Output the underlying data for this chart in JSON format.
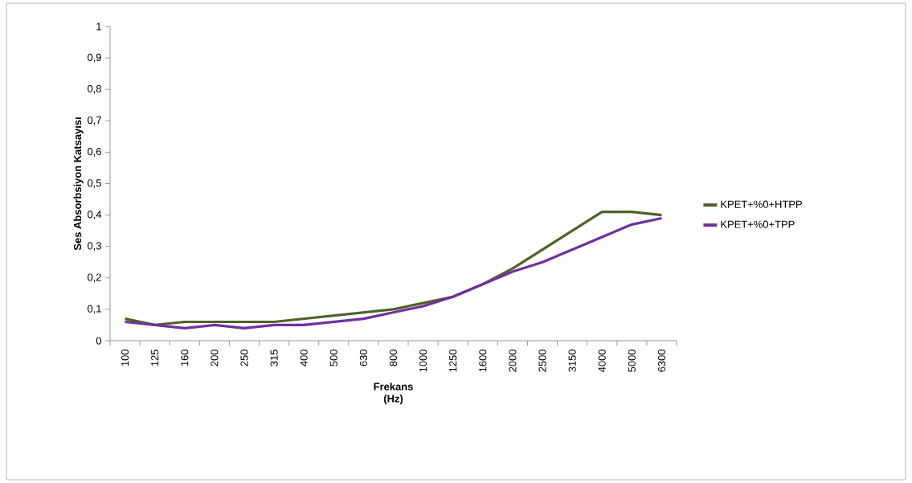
{
  "chart_data": {
    "type": "line",
    "xlabel": "Frekans (Hz)",
    "ylabel": "Ses Absorbsiyon Katsayısı",
    "categories": [
      "100",
      "125",
      "160",
      "200",
      "250",
      "315",
      "400",
      "500",
      "630",
      "800",
      "1000",
      "1250",
      "1600",
      "2000",
      "2500",
      "3150",
      "4000",
      "5000",
      "6300"
    ],
    "series": [
      {
        "name": "KPET+%0+HTPP",
        "color": "#4f6228",
        "values": [
          0.07,
          0.05,
          0.06,
          0.06,
          0.06,
          0.06,
          0.07,
          0.08,
          0.09,
          0.1,
          0.12,
          0.14,
          0.18,
          0.23,
          0.29,
          0.35,
          0.41,
          0.41,
          0.4
        ]
      },
      {
        "name": "KPET+%0+TPP",
        "color": "#7030a0",
        "values": [
          0.06,
          0.05,
          0.04,
          0.05,
          0.04,
          0.05,
          0.05,
          0.06,
          0.07,
          0.09,
          0.11,
          0.14,
          0.18,
          0.22,
          0.25,
          0.29,
          0.33,
          0.37,
          0.39
        ]
      }
    ],
    "ylim": [
      0,
      1
    ],
    "yticks": [
      0,
      {
        "value": 0.1,
        "label": "0,1"
      },
      {
        "value": 0.2,
        "label": "0,2"
      },
      {
        "value": 0.3,
        "label": "0,3"
      },
      {
        "value": 0.4,
        "label": "0,4"
      },
      {
        "value": 0.5,
        "label": "0,5"
      },
      {
        "value": 0.6,
        "label": "0,6"
      },
      {
        "value": 0.7,
        "label": "0,7"
      },
      {
        "value": 0.8,
        "label": "0,8"
      },
      {
        "value": 0.9,
        "label": "0,9"
      },
      1
    ],
    "grid": false,
    "legend": "right",
    "marker": "none",
    "line_style": "solid"
  }
}
